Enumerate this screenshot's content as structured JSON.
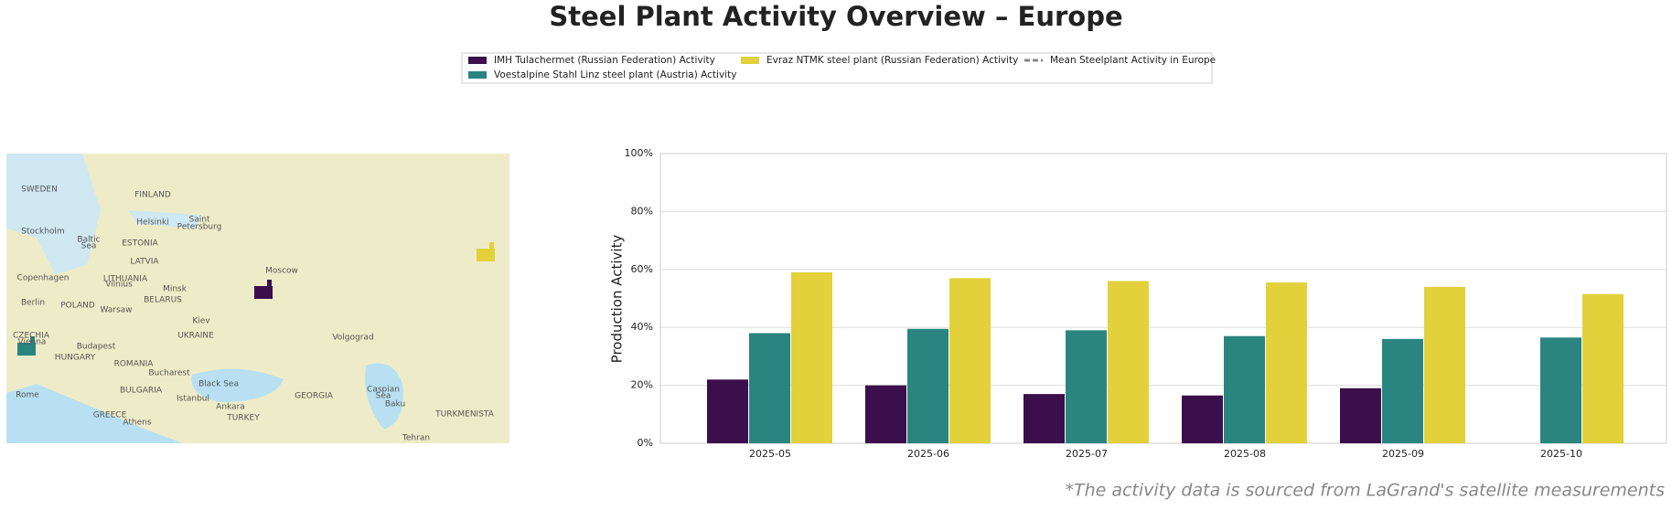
{
  "chart_data": {
    "type": "bar",
    "title": "Steel Plant Activity Overview – Europe",
    "y_label": "Production Activity",
    "categories": [
      "2025-05",
      "2025-06",
      "2025-07",
      "2025-08",
      "2025-09",
      "2025-10"
    ],
    "series": [
      {
        "name": "IMH Tulachermet (Russian Federation) Activity",
        "color": "#3b0f4b",
        "values": [
          22,
          20,
          17,
          16.5,
          19,
          null
        ]
      },
      {
        "name": "Voestalpine Stahl Linz steel plant (Austria) Activity",
        "color": "#2a8480",
        "values": [
          38,
          39.5,
          39,
          37,
          36,
          36.5
        ]
      },
      {
        "name": "Evraz NTMK steel plant (Russian Federation) Activity",
        "color": "#e2d13b",
        "values": [
          59,
          57,
          56,
          55.5,
          54,
          51.5
        ]
      },
      {
        "name": "Mean Steelplant Activity in Europe",
        "color": "#888888",
        "style": "dashed",
        "values": [
          null,
          null,
          null,
          null,
          null,
          null
        ]
      }
    ],
    "ylim": [
      0,
      100
    ],
    "yticks": [
      {
        "value": 0,
        "label": "0%"
      },
      {
        "value": 20,
        "label": "20%"
      },
      {
        "value": 40,
        "label": "40%"
      },
      {
        "value": 60,
        "label": "60%"
      },
      {
        "value": 80,
        "label": "80%"
      },
      {
        "value": 100,
        "label": "100%"
      }
    ],
    "grid": true,
    "source_note": "*The activity data is sourced from LaGrand's satellite measurements"
  },
  "map": {
    "labels": [
      "SWEDEN",
      "FINLAND",
      "Helsinki",
      "Saint",
      "Petersburg",
      "Stockholm",
      "Baltic",
      "Sea",
      "ESTONIA",
      "LATVIA",
      "Moscow",
      "Copenhagen",
      "LITHUANIA",
      "Vilnius",
      "Minsk",
      "BELARUS",
      "Berlin",
      "POLAND",
      "Warsaw",
      "Kiev",
      "CZECHIA",
      "UKRAINE",
      "Vienna",
      "Budapest",
      "Volgograd",
      "HUNGARY",
      "ROMANIA",
      "Bucharest",
      "Black Sea",
      "BULGARIA",
      "Caspian",
      "Sea",
      "Rome",
      "GEORGIA",
      "Istanbul",
      "Baku",
      "Ankara",
      "TURKEY",
      "GREECE",
      "TURKMENISTA",
      "Athens",
      "Tehran"
    ]
  }
}
